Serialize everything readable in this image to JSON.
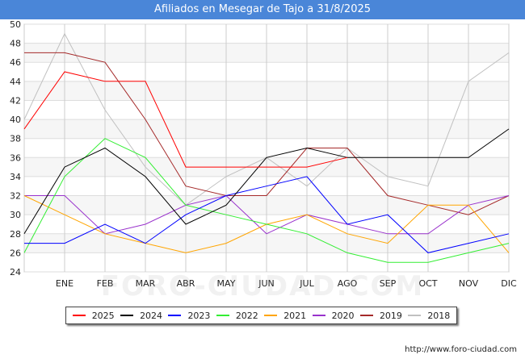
{
  "header": {
    "title": "Afiliados en Mesegar de Tajo a 31/8/2025"
  },
  "footer": {
    "url": "http://www.foro-ciudad.com",
    "watermark": "FORO-CIUDAD.COM"
  },
  "chart_data": {
    "type": "line",
    "title": "Afiliados en Mesegar de Tajo a 31/8/2025",
    "xlabel": "",
    "ylabel": "",
    "categories": [
      "",
      "ENE",
      "FEB",
      "MAR",
      "ABR",
      "MAY",
      "JUN",
      "JUL",
      "AGO",
      "SEP",
      "OCT",
      "NOV",
      "DIC"
    ],
    "ylim": [
      24,
      50
    ],
    "yticks": [
      24,
      26,
      28,
      30,
      32,
      34,
      36,
      38,
      40,
      42,
      44,
      46,
      48,
      50
    ],
    "grid": true,
    "legend_position": "bottom",
    "series": [
      {
        "name": "2018",
        "color": "#c0c0c0",
        "values": [
          40,
          49,
          41,
          35,
          31,
          34,
          36,
          33,
          37,
          34,
          33,
          44,
          47
        ]
      },
      {
        "name": "2019",
        "color": "#a52a2a",
        "values": [
          47,
          47,
          46,
          40,
          33,
          32,
          32,
          37,
          37,
          32,
          31,
          30,
          32
        ]
      },
      {
        "name": "2020",
        "color": "#9932cc",
        "values": [
          32,
          32,
          28,
          29,
          31,
          32,
          28,
          30,
          29,
          28,
          28,
          31,
          32
        ]
      },
      {
        "name": "2021",
        "color": "#ffa500",
        "values": [
          32,
          30,
          28,
          27,
          26,
          27,
          29,
          30,
          28,
          27,
          31,
          31,
          26
        ]
      },
      {
        "name": "2022",
        "color": "#33ee33",
        "values": [
          26,
          34,
          38,
          36,
          31,
          30,
          29,
          28,
          26,
          25,
          25,
          26,
          27
        ]
      },
      {
        "name": "2023",
        "color": "#0000ff",
        "values": [
          27,
          27,
          29,
          27,
          30,
          32,
          33,
          34,
          29,
          30,
          26,
          27,
          28
        ]
      },
      {
        "name": "2024",
        "color": "#000000",
        "values": [
          28,
          35,
          37,
          34,
          29,
          31,
          36,
          37,
          36,
          36,
          36,
          36,
          39
        ]
      },
      {
        "name": "2025",
        "color": "#ff0000",
        "values": [
          39,
          45,
          44,
          44,
          35,
          35,
          35,
          35,
          36,
          null,
          null,
          null,
          null
        ]
      }
    ],
    "legend_order": [
      "2025",
      "2024",
      "2023",
      "2022",
      "2021",
      "2020",
      "2019",
      "2018"
    ]
  }
}
